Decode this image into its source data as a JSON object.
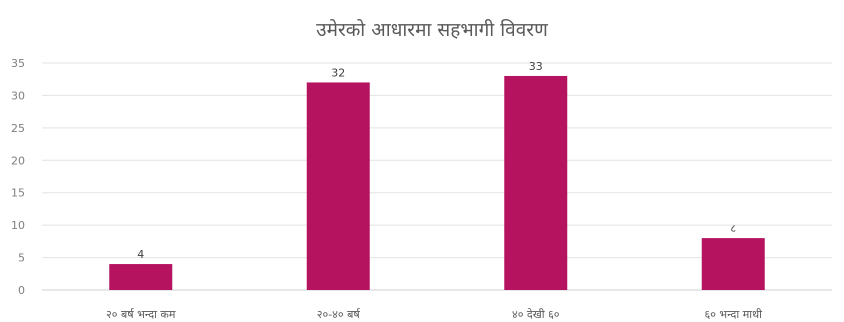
{
  "chart_data": {
    "type": "bar",
    "title": "उमेरको आधारमा सहभागी विवरण",
    "xlabel": "",
    "ylabel": "",
    "categories": [
      "२० बर्ष भन्दा कम",
      "२०-४० बर्ष",
      "४० देखी ६०",
      "६० भन्दा माथी"
    ],
    "series": [
      {
        "values": [
          4,
          32,
          33,
          8
        ],
        "data_labels": [
          "4",
          "32",
          "33",
          "८"
        ]
      }
    ],
    "ylim": [
      0,
      35
    ],
    "yticks": [
      0,
      5,
      10,
      15,
      20,
      25,
      30,
      35
    ],
    "grid": true,
    "legend": "none",
    "bar_color": "#b5135f"
  }
}
